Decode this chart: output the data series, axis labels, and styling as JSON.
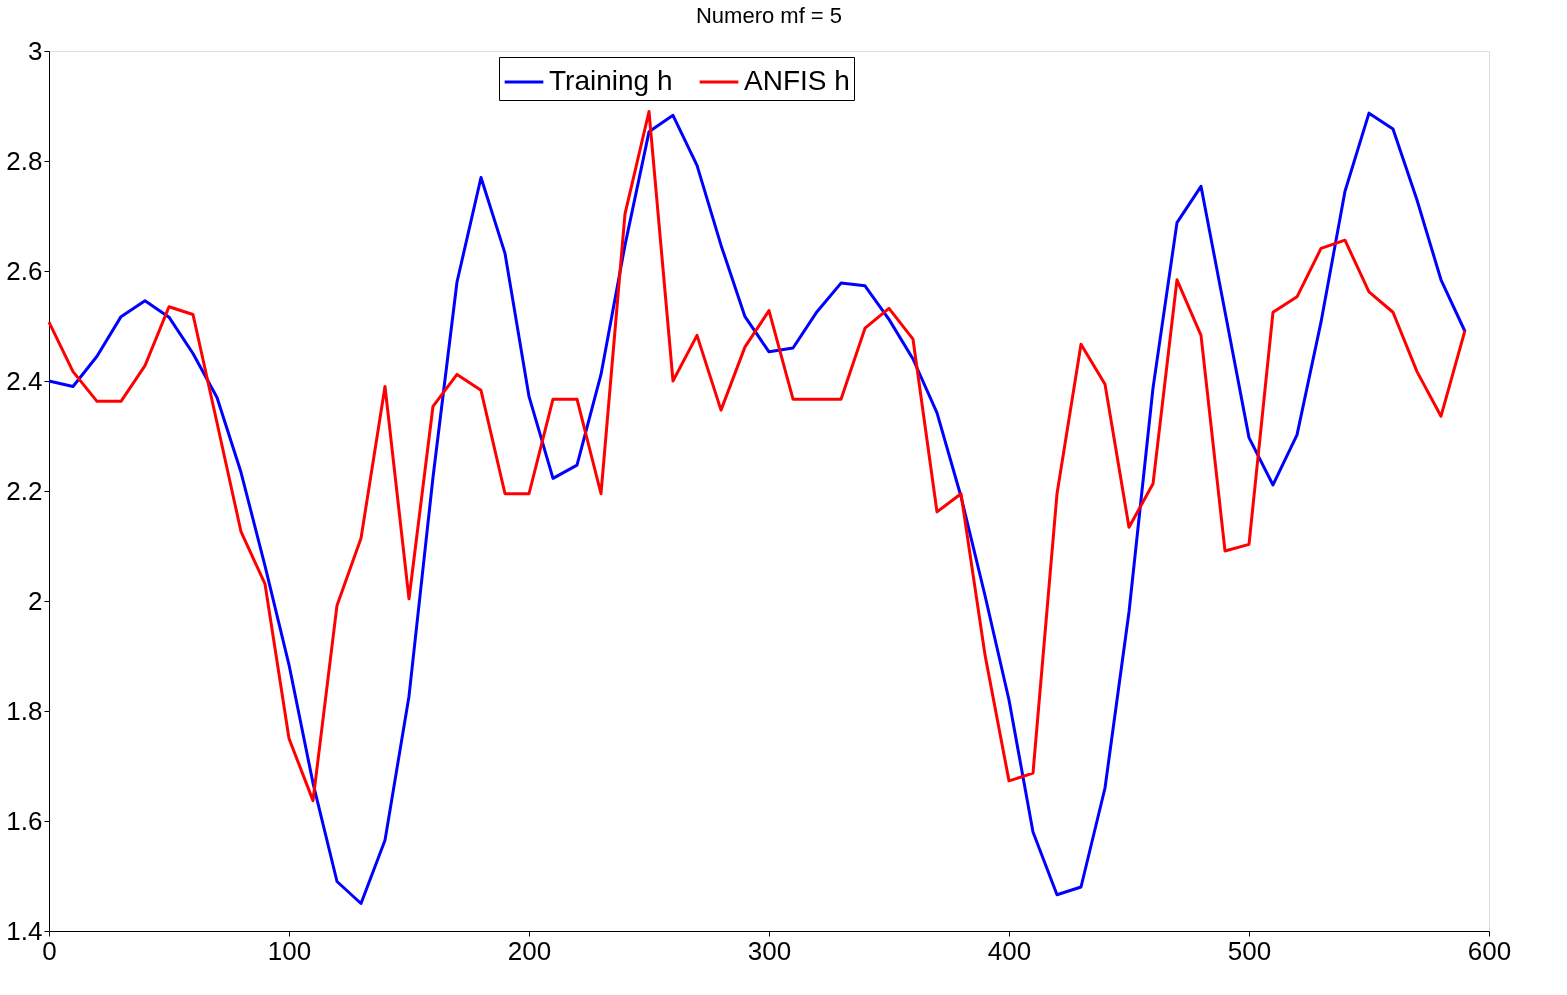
{
  "chart_data": {
    "type": "line",
    "title": "Numero mf = 5",
    "x": [
      0,
      10,
      20,
      30,
      40,
      50,
      60,
      70,
      80,
      90,
      100,
      110,
      120,
      130,
      140,
      150,
      160,
      170,
      180,
      190,
      200,
      210,
      220,
      230,
      240,
      250,
      260,
      270,
      280,
      290,
      300,
      310,
      320,
      330,
      340,
      350,
      360,
      370,
      380,
      390,
      400,
      410,
      420,
      430,
      440,
      450,
      460,
      470,
      480,
      490,
      500,
      510,
      520,
      530,
      540,
      550,
      560,
      570,
      580,
      590
    ],
    "series": [
      {
        "name": "Training h",
        "color": "#0000ff",
        "values": [
          2.4,
          2.39,
          2.445,
          2.517,
          2.546,
          2.516,
          2.45,
          2.37,
          2.234,
          2.064,
          1.884,
          1.669,
          1.49,
          1.45,
          1.565,
          1.827,
          2.225,
          2.58,
          2.77,
          2.632,
          2.372,
          2.223,
          2.247,
          2.412,
          2.647,
          2.853,
          2.883,
          2.792,
          2.647,
          2.517,
          2.453,
          2.46,
          2.526,
          2.578,
          2.573,
          2.512,
          2.44,
          2.342,
          2.19,
          2.01,
          1.82,
          1.58,
          1.466,
          1.48,
          1.66,
          1.98,
          2.387,
          2.688,
          2.754,
          2.526,
          2.297,
          2.211,
          2.302,
          2.507,
          2.745,
          2.887,
          2.858,
          2.729,
          2.584,
          2.49
        ]
      },
      {
        "name": "ANFIS h",
        "color": "#ff0000",
        "values": [
          2.507,
          2.417,
          2.363,
          2.363,
          2.428,
          2.535,
          2.521,
          2.324,
          2.126,
          2.031,
          1.75,
          1.637,
          1.992,
          2.114,
          2.39,
          2.004,
          2.354,
          2.412,
          2.383,
          2.195,
          2.195,
          2.367,
          2.367,
          2.195,
          2.704,
          2.89,
          2.4,
          2.483,
          2.347,
          2.462,
          2.528,
          2.367,
          2.367,
          2.367,
          2.496,
          2.532,
          2.476,
          2.162,
          2.195,
          1.902,
          1.673,
          1.687,
          2.195,
          2.467,
          2.394,
          2.134,
          2.213,
          2.584,
          2.483,
          2.091,
          2.103,
          2.525,
          2.553,
          2.641,
          2.656,
          2.562,
          2.525,
          2.417,
          2.336,
          2.492
        ]
      }
    ],
    "xlim": [
      0,
      600
    ],
    "xticks": [
      0,
      100,
      200,
      300,
      400,
      500,
      600
    ],
    "ylim": [
      1.4,
      3
    ],
    "yticks": [
      1.4,
      1.6,
      1.8,
      2,
      2.2,
      2.4,
      2.6,
      2.8,
      3
    ],
    "legend": "top",
    "grid": false,
    "marker": "none",
    "line_style": "solid"
  }
}
